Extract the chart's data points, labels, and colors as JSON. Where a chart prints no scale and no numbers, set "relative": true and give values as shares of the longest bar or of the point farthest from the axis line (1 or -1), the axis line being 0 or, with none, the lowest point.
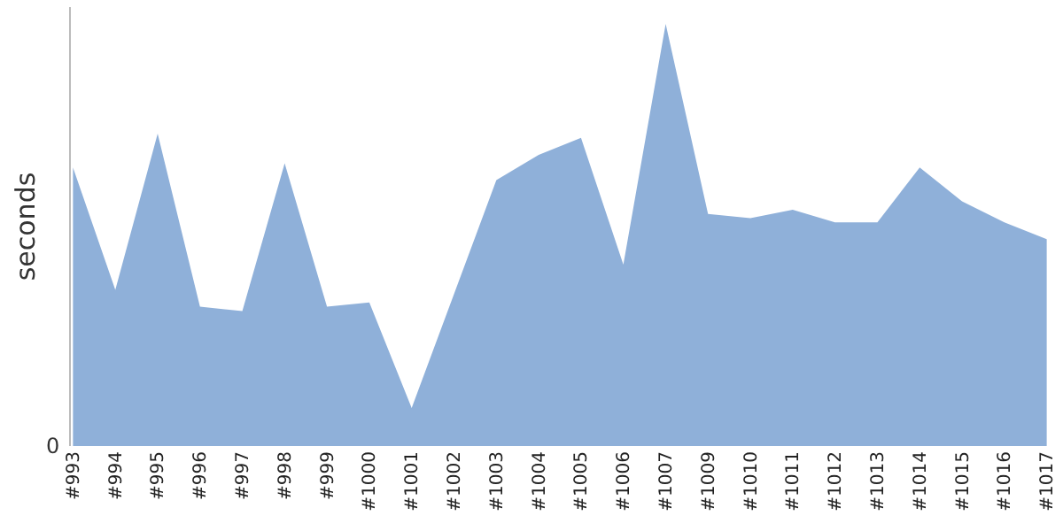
{
  "chart_data": {
    "relative": true,
    "ylabel": "seconds",
    "annotations": [
      "0"
    ],
    "categories": [
      "#993",
      "#994",
      "#995",
      "#996",
      "#997",
      "#998",
      "#999",
      "#1000",
      "#1001",
      "#1002",
      "#1003",
      "#1004",
      "#1005",
      "#1006",
      "#1007",
      "#1009",
      "#1010",
      "#1011",
      "#1012",
      "#1013",
      "#1014",
      "#1015",
      "#1016",
      "#1017"
    ],
    "series": [
      {
        "color": "#8fb0d9",
        "values": [
          0.66,
          0.37,
          0.74,
          0.33,
          0.32,
          0.67,
          0.33,
          0.34,
          0.09,
          0.36,
          0.63,
          0.69,
          0.73,
          0.43,
          1,
          0.55,
          0.54,
          0.56,
          0.53,
          0.53,
          0.66,
          0.58,
          0.53,
          0.49
        ]
      }
    ],
    "type": "area"
  }
}
